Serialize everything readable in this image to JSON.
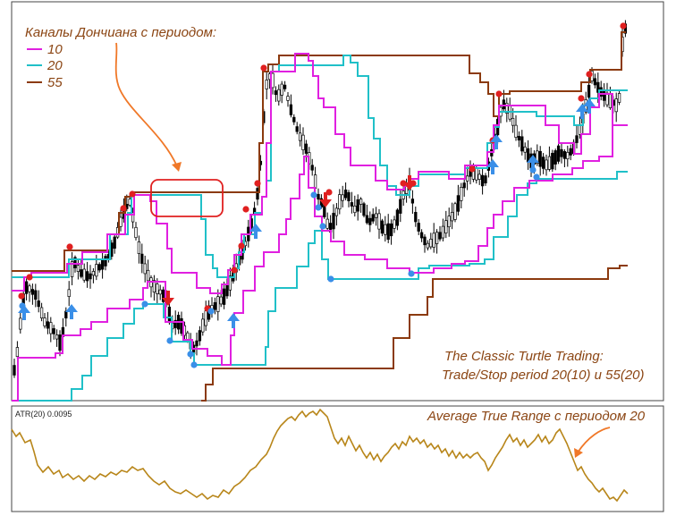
{
  "legend": {
    "title": "Каналы Дончиана с периодом:",
    "items": [
      {
        "label": "10",
        "color": "#e020e0"
      },
      {
        "label": "20",
        "color": "#20c0c8"
      },
      {
        "label": "55",
        "color": "#8b3a0e"
      }
    ]
  },
  "annotation_turtle": {
    "line1": "The Classic Turtle Trading:",
    "line2": "Trade/Stop period 20(10) и 55(20)"
  },
  "atr_panel": {
    "indicator_label": "ATR(20) 0.0095",
    "annotation": "Average True Range с периодом 20",
    "color": "#b8861a"
  },
  "colors": {
    "annotation_text": "#8b4513",
    "arrow_callout": "#f07828",
    "highlight_box": "#e02020",
    "buy_arrow": "#3a8fe8",
    "sell_arrow": "#e02020",
    "high_marker": "#e02020",
    "low_marker": "#3a8fe8",
    "candle": "#000000"
  },
  "chart_data": [
    {
      "type": "line",
      "panel": "price",
      "series": [
        {
          "name": "10",
          "role": "donchian-10"
        },
        {
          "name": "20",
          "role": "donchian-20"
        },
        {
          "name": "55",
          "role": "donchian-55"
        }
      ],
      "markers": {
        "buy_arrows": 9,
        "sell_arrows": 3
      }
    },
    {
      "type": "line",
      "panel": "atr",
      "series": [
        {
          "name": "ATR(20)"
        }
      ],
      "last_value": 0.0095
    }
  ]
}
